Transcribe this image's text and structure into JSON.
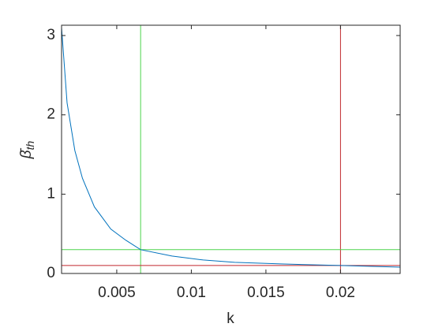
{
  "chart_data": {
    "type": "line",
    "x": [
      0.0013,
      0.00167,
      0.00219,
      0.0027,
      0.0035,
      0.0046,
      0.0056,
      0.0066,
      0.0087,
      0.0108,
      0.0129,
      0.016,
      0.02,
      0.024
    ],
    "series": [
      {
        "color": "#0072bd",
        "values": [
          3.1,
          2.15,
          1.55,
          1.2,
          0.84,
          0.56,
          0.42,
          0.3,
          0.22,
          0.17,
          0.14,
          0.12,
          0.1,
          0.08
        ]
      }
    ],
    "vlines": [
      {
        "value": 0.0066,
        "color": "#4cd44c"
      },
      {
        "value": 0.02,
        "color": "#c0272d"
      }
    ],
    "hlines": [
      {
        "value": 0.3,
        "color": "#4cd44c"
      },
      {
        "value": 0.1,
        "color": "#c0272d"
      }
    ],
    "xlim": [
      0.0013,
      0.024
    ],
    "ylim": [
      0,
      3.13
    ],
    "xticks": [
      0.005,
      0.01,
      0.015,
      0.02
    ],
    "yticks": [
      0,
      1,
      2,
      3
    ],
    "xlabel": "k",
    "ylabel": {
      "symbol": "β̄",
      "subscript": "th"
    },
    "grid": false
  }
}
